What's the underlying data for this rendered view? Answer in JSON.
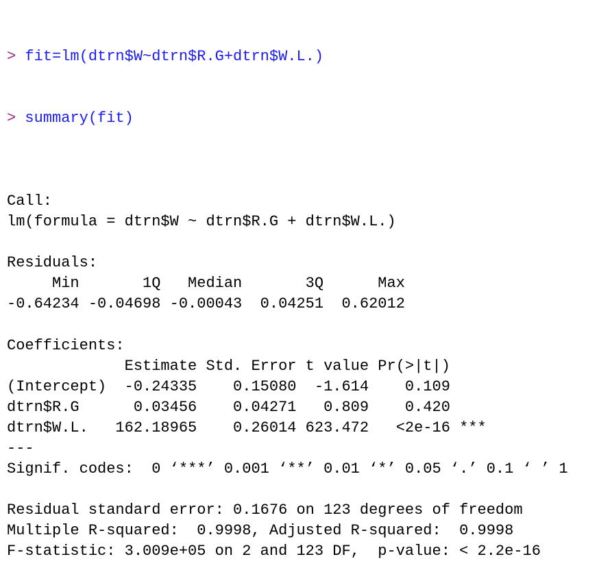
{
  "colors": {
    "prompt": "#9a2a8e",
    "command": "#1c1cf0",
    "output": "#000000"
  },
  "console": {
    "prompt_symbol": ">",
    "commands": [
      "fit=lm(dtrn$W~dtrn$R.G+dtrn$W.L.)",
      "summary(fit)"
    ],
    "output": [
      "",
      "Call:",
      "lm(formula = dtrn$W ~ dtrn$R.G + dtrn$W.L.)",
      "",
      "Residuals:",
      "     Min       1Q   Median       3Q      Max ",
      "-0.64234 -0.04698 -0.00043  0.04251  0.62012 ",
      "",
      "Coefficients:",
      "             Estimate Std. Error t value Pr(>|t|)    ",
      "(Intercept)  -0.24335    0.15080  -1.614    0.109    ",
      "dtrn$R.G      0.03456    0.04271   0.809    0.420    ",
      "dtrn$W.L.   162.18965    0.26014 623.472   <2e-16 ***",
      "---",
      "Signif. codes:  0 ‘***’ 0.001 ‘**’ 0.01 ‘*’ 0.05 ‘.’ 0.1 ‘ ’ 1",
      "",
      "Residual standard error: 0.1676 on 123 degrees of freedom",
      "Multiple R-squared:  0.9998,\tAdjusted R-squared:  0.9998 ",
      "F-statistic: 3.009e+05 on 2 and 123 DF,  p-value: < 2.2e-16"
    ]
  }
}
